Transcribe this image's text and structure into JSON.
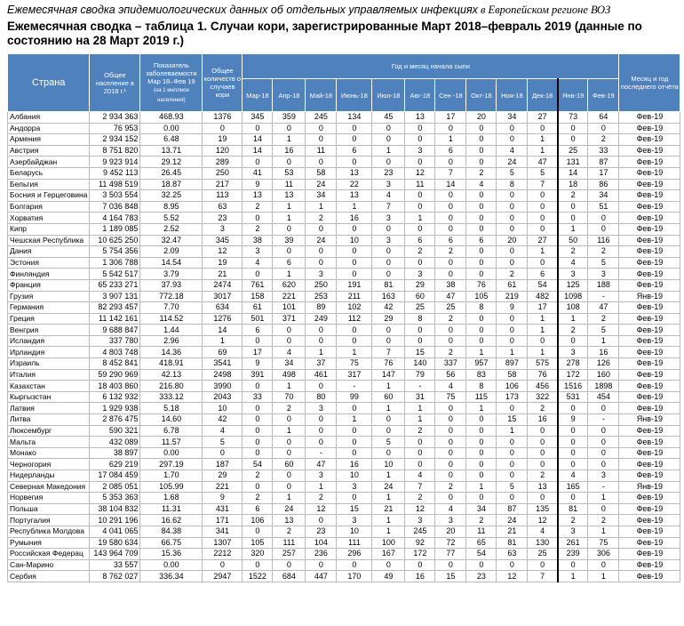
{
  "header_italic": "Ежемесячная сводка эпидемиологических данных об отдельных управляемых инфекциях",
  "header_rest": " в Европейском регионе ВОЗ",
  "title": "Ежемесячная сводка – таблица 1. Случаи кори, зарегистрированные Март 2018–февраль 2019 (данные по состоянию на 28 Март 2019 г.)",
  "columns": {
    "country": "Страна",
    "population": "Общее население в 2018 г.¹",
    "rate": "Показатель заболеваемости Мар 18–Фев 19",
    "rate_note": "(на 1 миллион населения)",
    "total": "Общее количеств о случаев кори",
    "months_group": "Год и месяц начала сыпи",
    "months": [
      "Мар-18",
      "Апр-18",
      "Май-18",
      "Июнь-18",
      "Июл-18",
      "Авг-18",
      "Сен -18",
      "Окт-18",
      "Ноя-18",
      "Дек-18",
      "Янв-19",
      "Фев-19"
    ],
    "last_report": "Месяц и год последнего отчёта"
  },
  "rows": [
    [
      "Албания",
      "2 934 363",
      "468.93",
      "1376",
      "345",
      "359",
      "245",
      "134",
      "45",
      "13",
      "17",
      "20",
      "34",
      "27",
      "73",
      "64",
      "Фев-19"
    ],
    [
      "Андорра",
      "76 953",
      "0.00",
      "0",
      "0",
      "0",
      "0",
      "0",
      "0",
      "0",
      "0",
      "0",
      "0",
      "0",
      "0",
      "0",
      "Фев-19"
    ],
    [
      "Армения",
      "2 934 152",
      "6.48",
      "19",
      "14",
      "1",
      "0",
      "0",
      "0",
      "0",
      "1",
      "0",
      "0",
      "1",
      "0",
      "2",
      "Фев-19"
    ],
    [
      "Австрия",
      "8 751 820",
      "13.71",
      "120",
      "14",
      "16",
      "11",
      "6",
      "1",
      "3",
      "6",
      "0",
      "4",
      "1",
      "25",
      "33",
      "Фев-19"
    ],
    [
      "Азербайджан",
      "9 923 914",
      "29.12",
      "289",
      "0",
      "0",
      "0",
      "0",
      "0",
      "0",
      "0",
      "0",
      "24",
      "47",
      "131",
      "87",
      "Фев-19"
    ],
    [
      "Беларусь",
      "9 452 113",
      "26.45",
      "250",
      "41",
      "53",
      "58",
      "13",
      "23",
      "12",
      "7",
      "2",
      "5",
      "5",
      "14",
      "17",
      "Фев-19"
    ],
    [
      "Бельгия",
      "11 498 519",
      "18.87",
      "217",
      "9",
      "11",
      "24",
      "22",
      "3",
      "11",
      "14",
      "4",
      "8",
      "7",
      "18",
      "86",
      "Фев-19"
    ],
    [
      "Босния и Герцеговина",
      "3 503 554",
      "32.25",
      "113",
      "13",
      "13",
      "34",
      "13",
      "4",
      "0",
      "0",
      "0",
      "0",
      "0",
      "2",
      "34",
      "Фев-19"
    ],
    [
      "Болгария",
      "7 036 848",
      "8.95",
      "63",
      "2",
      "1",
      "1",
      "1",
      "7",
      "0",
      "0",
      "0",
      "0",
      "0",
      "0",
      "51",
      "Фев-19"
    ],
    [
      "Хорватия",
      "4 164 783",
      "5.52",
      "23",
      "0",
      "1",
      "2",
      "16",
      "3",
      "1",
      "0",
      "0",
      "0",
      "0",
      "0",
      "0",
      "Фев-19"
    ],
    [
      "Кипр",
      "1 189 085",
      "2.52",
      "3",
      "2",
      "0",
      "0",
      "0",
      "0",
      "0",
      "0",
      "0",
      "0",
      "0",
      "1",
      "0",
      "Фев-19"
    ],
    [
      "Чешская Республика",
      "10 625 250",
      "32.47",
      "345",
      "38",
      "39",
      "24",
      "10",
      "3",
      "6",
      "6",
      "6",
      "20",
      "27",
      "50",
      "116",
      "Фев-19"
    ],
    [
      "Дания",
      "5 754 356",
      "2.09",
      "12",
      "3",
      "0",
      "0",
      "0",
      "0",
      "2",
      "2",
      "0",
      "0",
      "1",
      "2",
      "2",
      "Фев-19"
    ],
    [
      "Эстония",
      "1 306 788",
      "14.54",
      "19",
      "4",
      "6",
      "0",
      "0",
      "0",
      "0",
      "0",
      "0",
      "0",
      "0",
      "4",
      "5",
      "Фев-19"
    ],
    [
      "Финляндия",
      "5 542 517",
      "3.79",
      "21",
      "0",
      "1",
      "3",
      "0",
      "0",
      "3",
      "0",
      "0",
      "2",
      "6",
      "3",
      "3",
      "Фев-19"
    ],
    [
      "Франция",
      "65 233 271",
      "37.93",
      "2474",
      "761",
      "620",
      "250",
      "191",
      "81",
      "29",
      "38",
      "76",
      "61",
      "54",
      "125",
      "188",
      "Фев-19"
    ],
    [
      "Грузия",
      "3 907 131",
      "772.18",
      "3017",
      "158",
      "221",
      "253",
      "211",
      "163",
      "60",
      "47",
      "105",
      "219",
      "482",
      "1098",
      "-",
      "Янв-19"
    ],
    [
      "Германия",
      "82 293 457",
      "7.70",
      "634",
      "61",
      "101",
      "89",
      "102",
      "42",
      "25",
      "25",
      "8",
      "9",
      "17",
      "108",
      "47",
      "Фев-19"
    ],
    [
      "Греция",
      "11 142 161",
      "114.52",
      "1276",
      "501",
      "371",
      "249",
      "112",
      "29",
      "8",
      "2",
      "0",
      "0",
      "1",
      "1",
      "2",
      "Фев-19"
    ],
    [
      "Венгрия",
      "9 688 847",
      "1.44",
      "14",
      "6",
      "0",
      "0",
      "0",
      "0",
      "0",
      "0",
      "0",
      "0",
      "1",
      "2",
      "5",
      "Фев-19"
    ],
    [
      "Исландия",
      "337 780",
      "2.96",
      "1",
      "0",
      "0",
      "0",
      "0",
      "0",
      "0",
      "0",
      "0",
      "0",
      "0",
      "0",
      "1",
      "Фев-19"
    ],
    [
      "Ирландия",
      "4 803 748",
      "14.36",
      "69",
      "17",
      "4",
      "1",
      "1",
      "7",
      "15",
      "2",
      "1",
      "1",
      "1",
      "3",
      "16",
      "Фев-19"
    ],
    [
      "Израиль",
      "8 452 841",
      "418.91",
      "3541",
      "9",
      "34",
      "37",
      "75",
      "76",
      "140",
      "337",
      "957",
      "897",
      "575",
      "278",
      "126",
      "Фев-19"
    ],
    [
      "Италия",
      "59 290 969",
      "42.13",
      "2498",
      "391",
      "498",
      "461",
      "317",
      "147",
      "79",
      "56",
      "83",
      "58",
      "76",
      "172",
      "160",
      "Фев-19"
    ],
    [
      "Казахстан",
      "18 403 860",
      "216.80",
      "3990",
      "0",
      "1",
      "0",
      "-",
      "1",
      "-",
      "4",
      "8",
      "106",
      "456",
      "1516",
      "1898",
      "Фев-19"
    ],
    [
      "Кыргызстан",
      "6 132 932",
      "333.12",
      "2043",
      "33",
      "70",
      "80",
      "99",
      "60",
      "31",
      "75",
      "115",
      "173",
      "322",
      "531",
      "454",
      "Фев-19"
    ],
    [
      "Латвия",
      "1 929 938",
      "5.18",
      "10",
      "0",
      "2",
      "3",
      "0",
      "1",
      "1",
      "0",
      "1",
      "0",
      "2",
      "0",
      "0",
      "Фев-19"
    ],
    [
      "Литва",
      "2 876 475",
      "14.60",
      "42",
      "0",
      "0",
      "0",
      "1",
      "0",
      "1",
      "0",
      "0",
      "15",
      "16",
      "9",
      "-",
      "Янв-19"
    ],
    [
      "Люксембург",
      "590 321",
      "6.78",
      "4",
      "0",
      "1",
      "0",
      "0",
      "0",
      "2",
      "0",
      "0",
      "1",
      "0",
      "0",
      "0",
      "Фев-19"
    ],
    [
      "Мальта",
      "432 089",
      "11.57",
      "5",
      "0",
      "0",
      "0",
      "0",
      "5",
      "0",
      "0",
      "0",
      "0",
      "0",
      "0",
      "0",
      "Фев-19"
    ],
    [
      "Монако",
      "38 897",
      "0.00",
      "0",
      "0",
      "0",
      "-",
      "0",
      "0",
      "0",
      "0",
      "0",
      "0",
      "0",
      "0",
      "0",
      "Фев-19"
    ],
    [
      "Черногория",
      "629 219",
      "297.19",
      "187",
      "54",
      "60",
      "47",
      "16",
      "10",
      "0",
      "0",
      "0",
      "0",
      "0",
      "0",
      "0",
      "Фев-19"
    ],
    [
      "Нидерланды",
      "17 084 459",
      "1.70",
      "29",
      "2",
      "0",
      "3",
      "10",
      "1",
      "4",
      "0",
      "0",
      "0",
      "2",
      "4",
      "3",
      "Фев-19"
    ],
    [
      "Северная Македония",
      "2 085 051",
      "105.99",
      "221",
      "0",
      "0",
      "1",
      "3",
      "24",
      "7",
      "2",
      "1",
      "5",
      "13",
      "165",
      "-",
      "Янв-19"
    ],
    [
      "Норвегия",
      "5 353 363",
      "1.68",
      "9",
      "2",
      "1",
      "2",
      "0",
      "1",
      "2",
      "0",
      "0",
      "0",
      "0",
      "0",
      "1",
      "Фев-19"
    ],
    [
      "Польша",
      "38 104 832",
      "11.31",
      "431",
      "6",
      "24",
      "12",
      "15",
      "21",
      "12",
      "4",
      "34",
      "87",
      "135",
      "81",
      "0",
      "Фев-19"
    ],
    [
      "Португалия",
      "10 291 196",
      "16.62",
      "171",
      "106",
      "13",
      "0",
      "3",
      "1",
      "3",
      "3",
      "2",
      "24",
      "12",
      "2",
      "2",
      "Фев-19"
    ],
    [
      "Республика Молдова",
      "4 041 065",
      "84.38",
      "341",
      "0",
      "2",
      "23",
      "10",
      "1",
      "245",
      "20",
      "11",
      "21",
      "4",
      "3",
      "1",
      "Фев-19"
    ],
    [
      "Румыния",
      "19 580 634",
      "66.75",
      "1307",
      "105",
      "111",
      "104",
      "111",
      "100",
      "92",
      "72",
      "65",
      "81",
      "130",
      "261",
      "75",
      "Фев-19"
    ],
    [
      "Российская Федерац",
      "143 964 709",
      "15.36",
      "2212",
      "320",
      "257",
      "236",
      "296",
      "167",
      "172",
      "77",
      "54",
      "63",
      "25",
      "239",
      "306",
      "Фев-19"
    ],
    [
      "Сан-Марино",
      "33 557",
      "0.00",
      "0",
      "0",
      "0",
      "0",
      "0",
      "0",
      "0",
      "0",
      "0",
      "0",
      "0",
      "0",
      "0",
      "Фев-19"
    ],
    [
      "Сербия",
      "8 762 027",
      "336.34",
      "2947",
      "1522",
      "684",
      "447",
      "170",
      "49",
      "16",
      "15",
      "23",
      "12",
      "7",
      "1",
      "1",
      "Фев-19"
    ]
  ],
  "colors": {
    "header_bg": "#4f81bd",
    "header_text": "#ffffff"
  }
}
